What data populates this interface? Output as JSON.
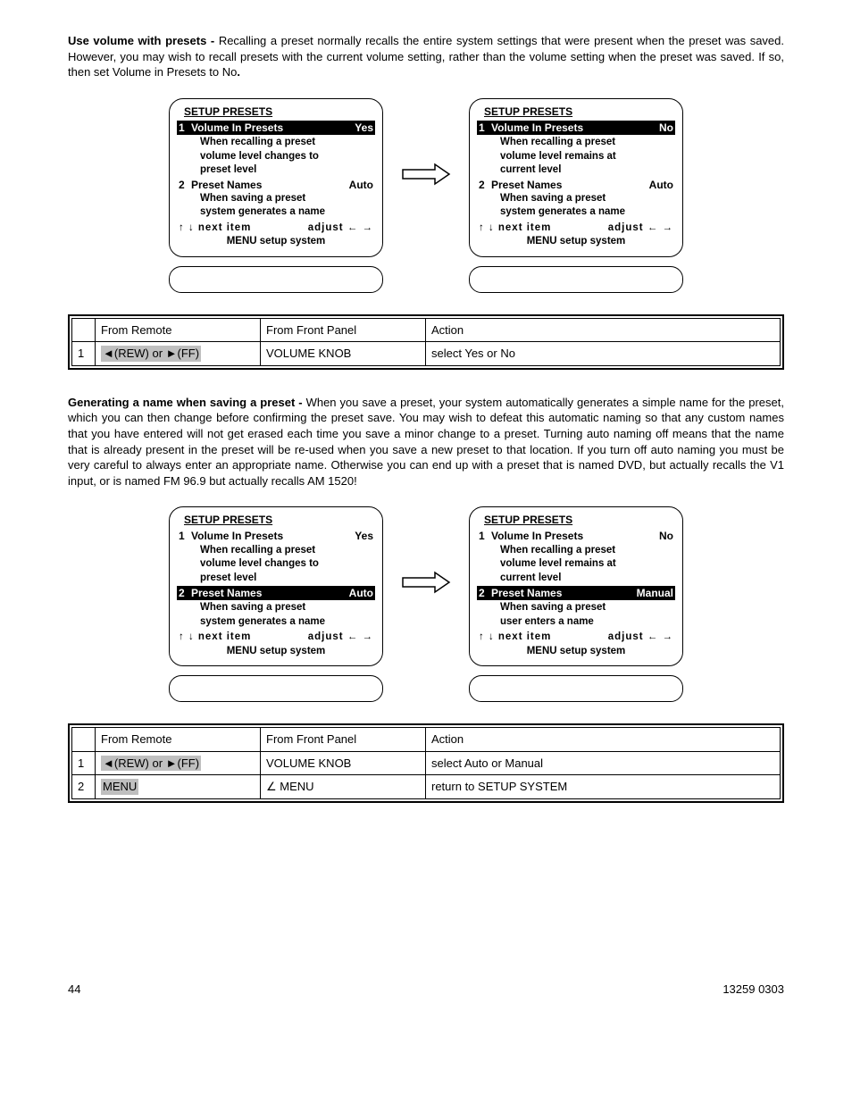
{
  "para1": {
    "lead": "Use volume with presets - ",
    "body": "Recalling a  preset normally recalls the entire system settings that were present when the preset was saved. However, you may wish to recall presets with the current volume setting, rather than the volume setting when the preset was saved. If so, then set Volume in Presets to No",
    "trail": "."
  },
  "panelSet1": {
    "left": {
      "title": "SETUP PRESETS",
      "item1_num": "1",
      "item1_label": "Volume In Presets",
      "item1_val": "Yes",
      "item1_hl": true,
      "item1_desc1": "When recalling a preset",
      "item1_desc2": "volume level changes to",
      "item1_desc3": "preset level",
      "item2_num": "2",
      "item2_label": "Preset Names",
      "item2_val": "Auto",
      "item2_hl": false,
      "item2_desc1": "When saving a preset",
      "item2_desc2": "system generates a name",
      "nav_left": "↑ ↓   next item",
      "nav_right": "adjust   ← →",
      "menu": "MENU setup system"
    },
    "right": {
      "title": "SETUP PRESETS",
      "item1_num": "1",
      "item1_label": "Volume In Presets",
      "item1_val": "No",
      "item1_hl": true,
      "item1_desc1": "When recalling a preset",
      "item1_desc2": "volume level remains at",
      "item1_desc3": "current level",
      "item2_num": "2",
      "item2_label": "Preset Names",
      "item2_val": "Auto",
      "item2_hl": false,
      "item2_desc1": "When saving a preset",
      "item2_desc2": "system generates a name",
      "nav_left": "↑ ↓   next item",
      "nav_right": "adjust   ← →",
      "menu": "MENU setup system"
    }
  },
  "table1": {
    "h1": "",
    "h2": "From Remote",
    "h3": "From Front Panel",
    "h4": "Action",
    "rows": [
      {
        "n": "1",
        "remote": "◄(REW) or ►(FF)",
        "panel": "VOLUME KNOB",
        "action": "select  Yes or No",
        "shade": true
      }
    ]
  },
  "para2": {
    "lead": "Generating a name when saving a preset - ",
    "body": "When you save a preset, your system  automatically generates a simple name for the preset, which you can then change before confirming the preset save. You may wish to defeat this automatic naming so that any custom names that you have entered will not get erased each time you save a minor change to a preset. Turning auto naming off means that the name that is already present in the preset will be re-used when you save a new preset to that location. If you turn off auto naming you must be very careful to  always enter an appropriate name. Otherwise you can end up with a preset that is named DVD, but actually recalls the V1 input, or is named FM 96.9 but actually recalls AM 1520!"
  },
  "panelSet2": {
    "left": {
      "title": "SETUP PRESETS",
      "item1_num": "1",
      "item1_label": "Volume In Presets",
      "item1_val": "Yes",
      "item1_hl": false,
      "item1_desc1": "When recalling a preset",
      "item1_desc2": "volume level changes to",
      "item1_desc3": "preset level",
      "item2_num": "2",
      "item2_label": "Preset Names",
      "item2_val": "Auto",
      "item2_hl": true,
      "item2_desc1": "When saving a preset",
      "item2_desc2": "system generates a name",
      "nav_left": "↑ ↓   next item",
      "nav_right": "adjust   ← →",
      "menu": "MENU setup system"
    },
    "right": {
      "title": "SETUP PRESETS",
      "item1_num": "1",
      "item1_label": "Volume In Presets",
      "item1_val": "No",
      "item1_hl": false,
      "item1_desc1": "When recalling a preset",
      "item1_desc2": "volume level remains at",
      "item1_desc3": "current level",
      "item2_num": "2",
      "item2_label": "Preset Names",
      "item2_val": "Manual",
      "item2_hl": true,
      "item2_desc1": "When saving a preset",
      "item2_desc2": "user enters a name",
      "nav_left": "↑ ↓   next item",
      "nav_right": "adjust   ← →",
      "menu": "MENU setup system"
    }
  },
  "table2": {
    "h1": "",
    "h2": "From Remote",
    "h3": "From Front Panel",
    "h4": "Action",
    "rows": [
      {
        "n": "1",
        "remote": "◄(REW) or ►(FF)",
        "panel": "VOLUME KNOB",
        "action": "select  Auto or Manual",
        "shade": true
      },
      {
        "n": "2",
        "remote": "MENU",
        "panel": "∠ MENU",
        "action": "return to SETUP SYSTEM",
        "shade": true
      }
    ]
  },
  "footer": {
    "page": "44",
    "doc": "13259 0303"
  },
  "colors": {
    "text": "#000000",
    "bg": "#ffffff",
    "highlight_bg": "#000000",
    "highlight_fg": "#ffffff",
    "shade": "#bfbfbf"
  }
}
